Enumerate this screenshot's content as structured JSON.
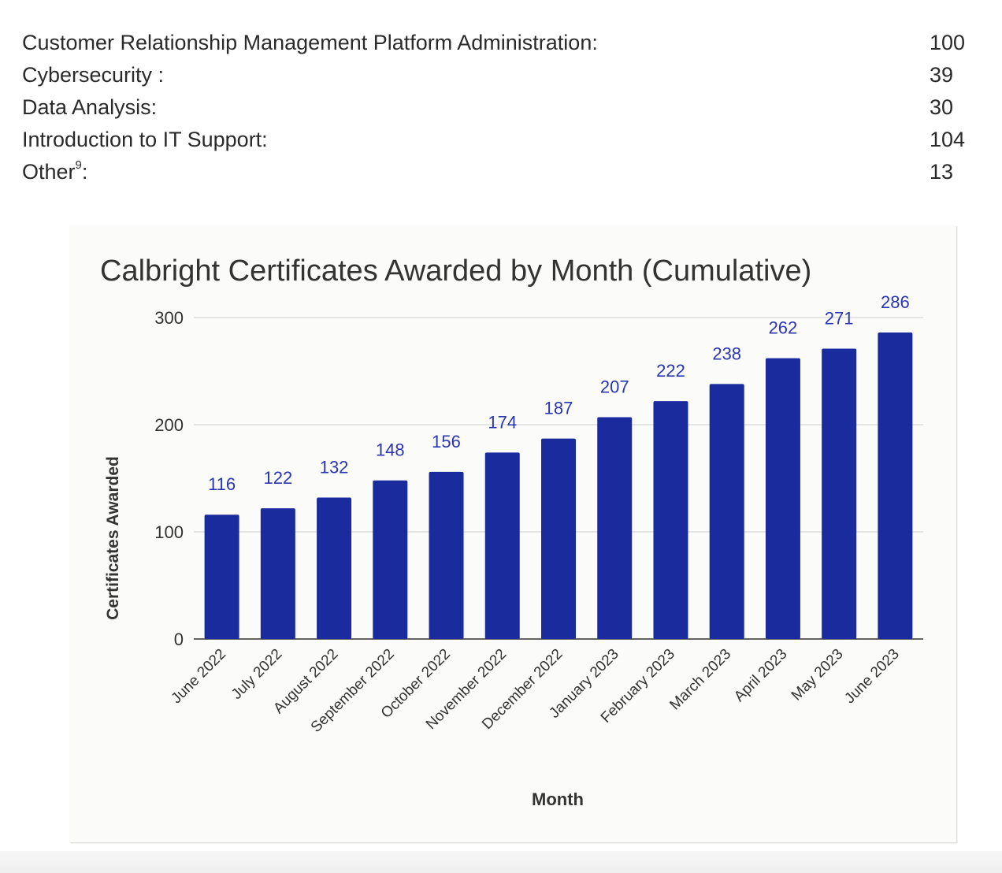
{
  "stats": [
    {
      "label": "Customer Relationship Management Platform Administration:",
      "value": "100"
    },
    {
      "label": "Cybersecurity :",
      "value": "39"
    },
    {
      "label": "Data Analysis:",
      "value": "30"
    },
    {
      "label": "Introduction to IT Support:",
      "value": "104"
    },
    {
      "label": "Other",
      "footnote": "9",
      "suffix": ":",
      "value": "13"
    }
  ],
  "chart_data": {
    "type": "bar",
    "title": "Calbright Certificates Awarded by Month (Cumulative)",
    "xlabel": "Month",
    "ylabel": "Certificates Awarded",
    "ylim": [
      0,
      300
    ],
    "yticks": [
      0,
      100,
      200,
      300
    ],
    "grid": true,
    "bar_color": "#1a2b9e",
    "label_color": "#2a35b4",
    "categories": [
      "June 2022",
      "July 2022",
      "August 2022",
      "September 2022",
      "October 2022",
      "November 2022",
      "December 2022",
      "January 2023",
      "February 2023",
      "March 2023",
      "April 2023",
      "May 2023",
      "June 2023"
    ],
    "values": [
      116,
      122,
      132,
      148,
      156,
      174,
      187,
      207,
      222,
      238,
      262,
      271,
      286
    ]
  }
}
